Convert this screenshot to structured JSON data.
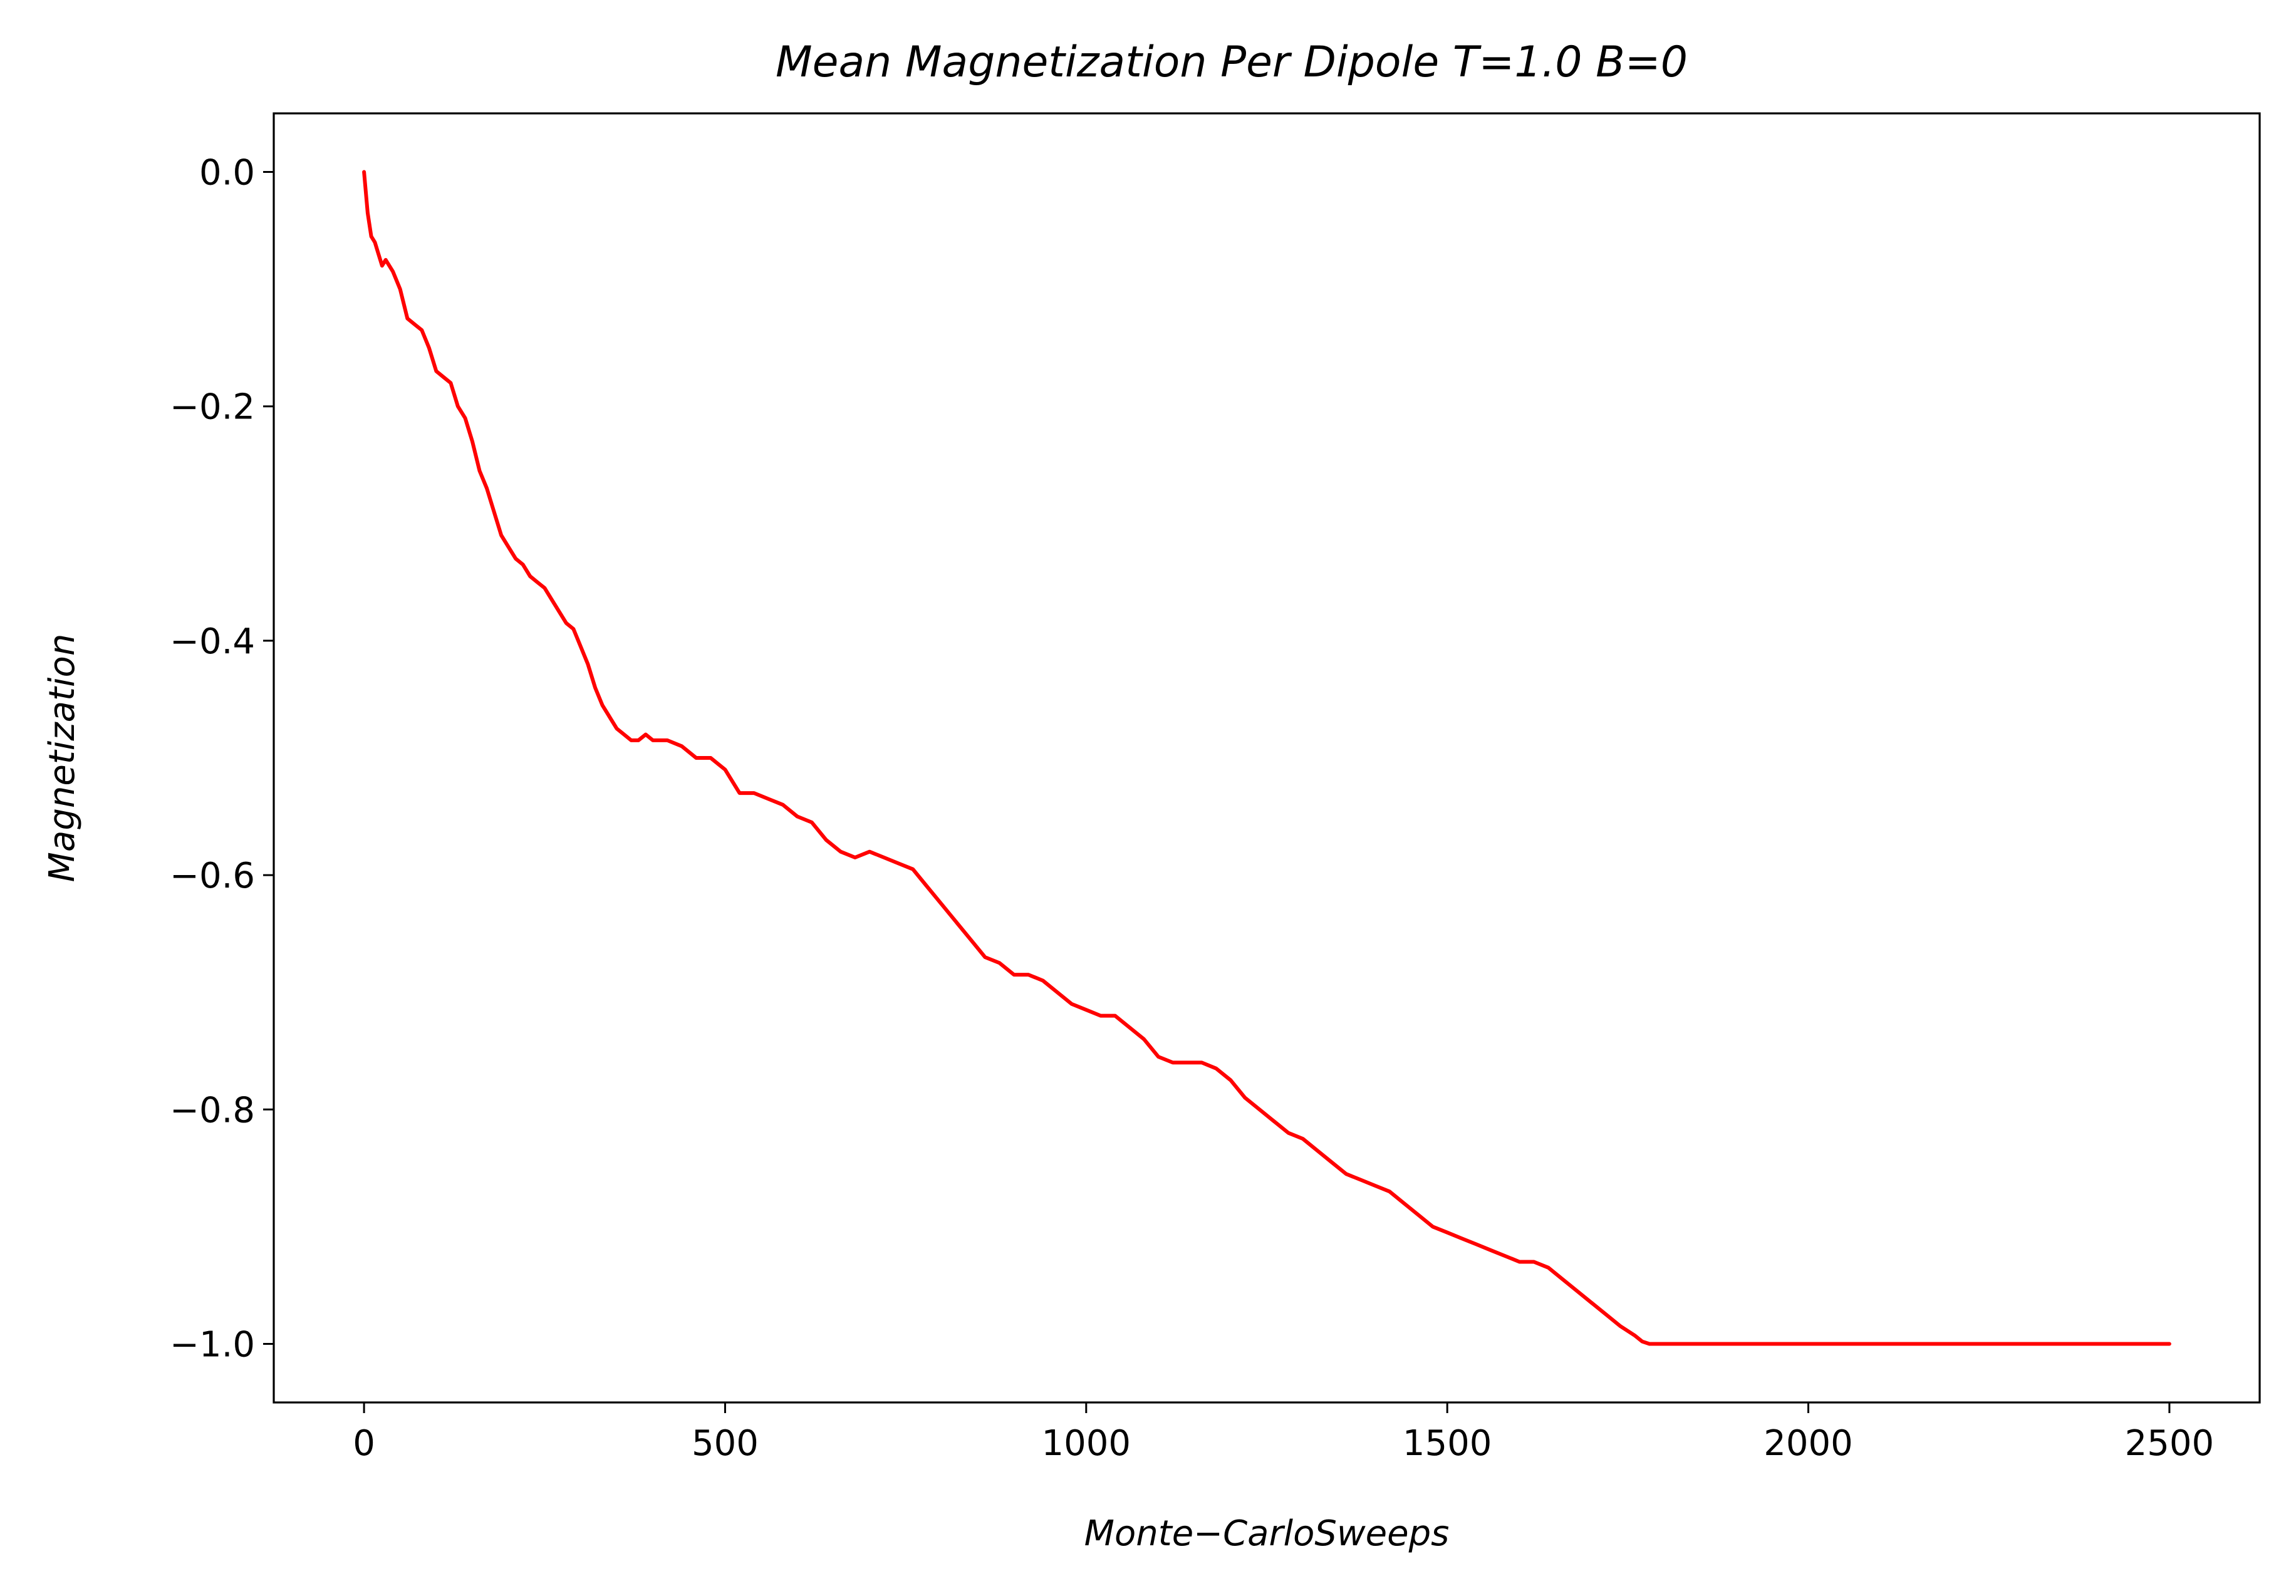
{
  "chart_data": {
    "type": "line",
    "title": "Mean Magnetization Per Dipole T=1.0 B=0",
    "xlabel": "Monte−CarloSweeps",
    "ylabel": "Magnetization",
    "xlim": [
      -125,
      2625
    ],
    "ylim": [
      -1.05,
      0.05
    ],
    "xticks": [
      0,
      500,
      1000,
      1500,
      2000,
      2500
    ],
    "xtick_labels": [
      "0",
      "500",
      "1000",
      "1500",
      "2000",
      "2500"
    ],
    "yticks": [
      0.0,
      -0.2,
      -0.4,
      -0.6,
      -0.8,
      -1.0
    ],
    "ytick_labels": [
      "0.0",
      "−0.2",
      "−0.4",
      "−0.6",
      "−0.8",
      "−1.0"
    ],
    "grid": false,
    "series": [
      {
        "color": "#ff0000",
        "x": [
          0,
          5,
          10,
          15,
          20,
          25,
          30,
          40,
          50,
          60,
          70,
          80,
          90,
          100,
          110,
          120,
          130,
          140,
          150,
          160,
          170,
          180,
          190,
          200,
          210,
          220,
          230,
          240,
          250,
          260,
          270,
          280,
          290,
          300,
          310,
          320,
          330,
          340,
          350,
          360,
          370,
          380,
          390,
          400,
          420,
          440,
          460,
          480,
          500,
          520,
          540,
          560,
          580,
          600,
          620,
          640,
          660,
          680,
          700,
          720,
          740,
          760,
          780,
          800,
          820,
          840,
          860,
          880,
          900,
          920,
          940,
          960,
          980,
          1000,
          1020,
          1040,
          1060,
          1080,
          1100,
          1120,
          1140,
          1160,
          1180,
          1200,
          1220,
          1240,
          1260,
          1280,
          1300,
          1320,
          1340,
          1360,
          1380,
          1400,
          1420,
          1440,
          1460,
          1480,
          1500,
          1520,
          1540,
          1560,
          1580,
          1600,
          1620,
          1640,
          1660,
          1680,
          1700,
          1720,
          1740,
          1760,
          1770,
          1780,
          1800,
          1850,
          1900,
          1950,
          2000,
          2050,
          2100,
          2150,
          2200,
          2250,
          2300,
          2350,
          2400,
          2450,
          2500
        ],
        "y": [
          0.0,
          -0.035,
          -0.055,
          -0.06,
          -0.07,
          -0.08,
          -0.075,
          -0.085,
          -0.1,
          -0.125,
          -0.13,
          -0.135,
          -0.15,
          -0.17,
          -0.175,
          -0.18,
          -0.2,
          -0.21,
          -0.23,
          -0.255,
          -0.27,
          -0.29,
          -0.31,
          -0.32,
          -0.33,
          -0.335,
          -0.345,
          -0.35,
          -0.355,
          -0.365,
          -0.375,
          -0.385,
          -0.39,
          -0.405,
          -0.42,
          -0.44,
          -0.455,
          -0.465,
          -0.475,
          -0.48,
          -0.485,
          -0.485,
          -0.48,
          -0.485,
          -0.485,
          -0.49,
          -0.5,
          -0.5,
          -0.51,
          -0.53,
          -0.53,
          -0.535,
          -0.54,
          -0.55,
          -0.555,
          -0.57,
          -0.58,
          -0.585,
          -0.58,
          -0.585,
          -0.59,
          -0.595,
          -0.61,
          -0.625,
          -0.64,
          -0.655,
          -0.67,
          -0.675,
          -0.685,
          -0.685,
          -0.69,
          -0.7,
          -0.71,
          -0.715,
          -0.72,
          -0.72,
          -0.73,
          -0.74,
          -0.755,
          -0.76,
          -0.76,
          -0.76,
          -0.765,
          -0.775,
          -0.79,
          -0.8,
          -0.81,
          -0.82,
          -0.825,
          -0.835,
          -0.845,
          -0.855,
          -0.86,
          -0.865,
          -0.87,
          -0.88,
          -0.89,
          -0.9,
          -0.905,
          -0.91,
          -0.915,
          -0.92,
          -0.925,
          -0.93,
          -0.93,
          -0.935,
          -0.945,
          -0.955,
          -0.965,
          -0.975,
          -0.985,
          -0.993,
          -0.998,
          -1.0,
          -1.0,
          -1.0,
          -1.0,
          -1.0,
          -1.0,
          -1.0,
          -1.0,
          -1.0,
          -1.0,
          -1.0,
          -1.0,
          -1.0,
          -1.0,
          -1.0,
          -1.0
        ]
      }
    ]
  }
}
